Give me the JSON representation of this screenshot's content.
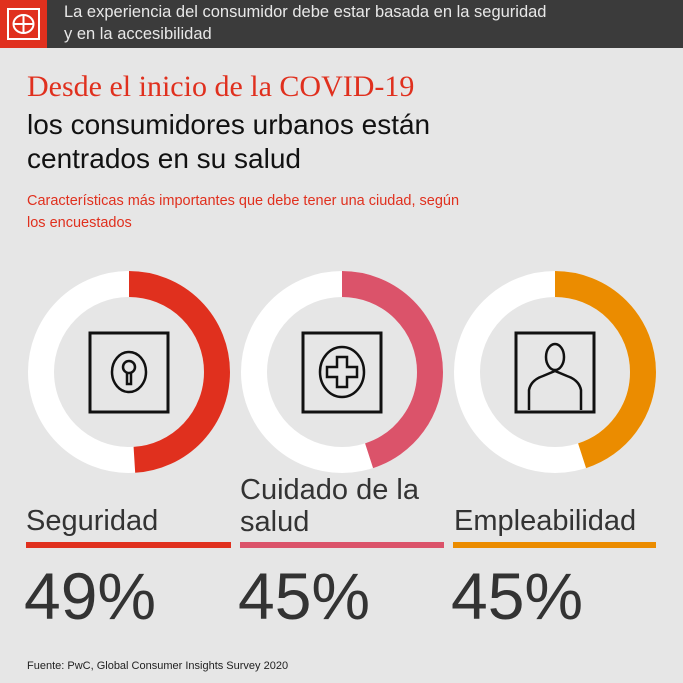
{
  "header": {
    "text_line1": "La experiencia del consumidor debe estar basada en la seguridad",
    "text_line2": "y en la accesibilidad"
  },
  "title": {
    "line1": "Desde el inicio de la COVID-19",
    "line2": "los consumidores urbanos están",
    "line3": "centrados en su salud"
  },
  "subtitle": {
    "line1": "Características más importantes que debe tener una ciudad, según",
    "line2": "los encuestados"
  },
  "chart_data": {
    "type": "pie",
    "subtype": "donut",
    "title": "Características más importantes que debe tener una ciudad, según los encuestados",
    "categories": [
      "Seguridad",
      "Cuidado de la salud",
      "Empleabilidad"
    ],
    "values": [
      49,
      45,
      45
    ],
    "labels": [
      "49%",
      "45%",
      "45%"
    ],
    "colors": [
      "#e0301e",
      "#db536a",
      "#eb8c00"
    ],
    "icons": [
      "keyhole-icon",
      "medical-cross-icon",
      "person-icon"
    ]
  },
  "labels": {
    "a": "Seguridad",
    "b1": "Cuidado de la",
    "b2": "salud",
    "c": "Empleabilidad"
  },
  "footer": "Fuente: PwC, Global Consumer Insights Survey 2020"
}
